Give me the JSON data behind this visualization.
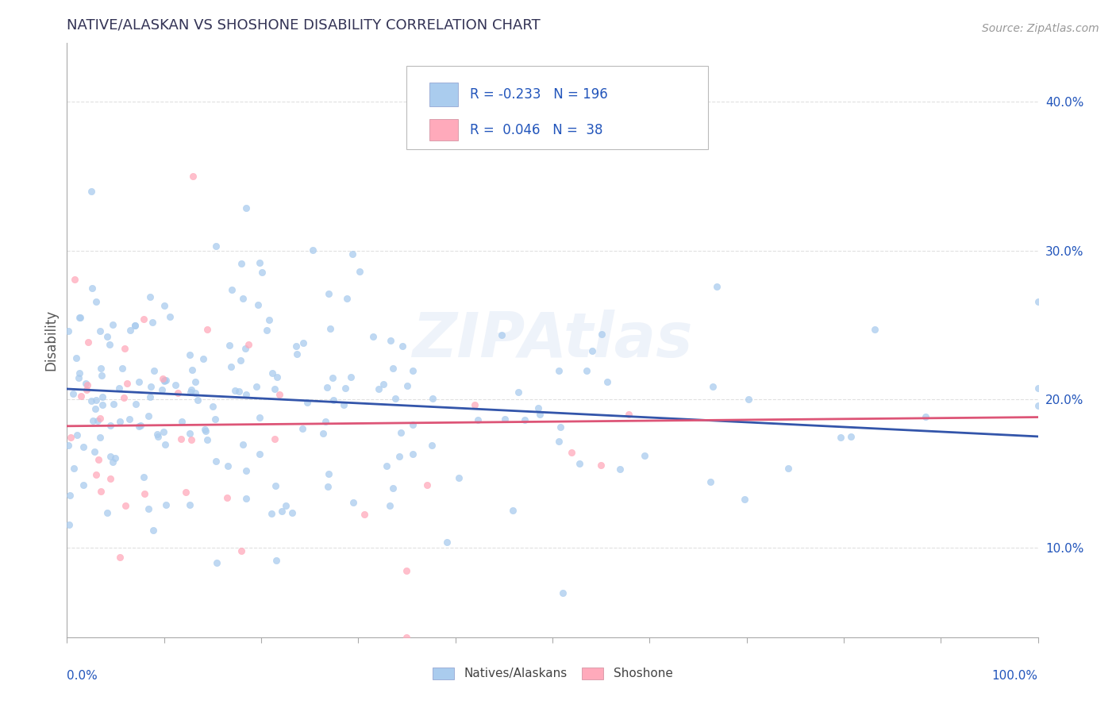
{
  "title": "NATIVE/ALASKAN VS SHOSHONE DISABILITY CORRELATION CHART",
  "source": "Source: ZipAtlas.com",
  "ylabel": "Disability",
  "r_blue": -0.233,
  "n_blue": 196,
  "r_pink": 0.046,
  "n_pink": 38,
  "blue_color": "#aaccee",
  "pink_color": "#ffaabb",
  "blue_line_color": "#3355aa",
  "pink_line_color": "#dd5577",
  "legend_blue_label": "Natives/Alaskans",
  "legend_pink_label": "Shoshone",
  "title_color": "#333355",
  "source_color": "#999999",
  "grid_color": "#dddddd",
  "watermark": "ZIPAtlas",
  "ylim": [
    0.04,
    0.44
  ],
  "xlim": [
    0.0,
    1.0
  ],
  "yticks": [
    0.1,
    0.2,
    0.3,
    0.4
  ],
  "ytick_labels": [
    "10.0%",
    "20.0%",
    "30.0%",
    "40.0%"
  ],
  "blue_line_start_y": 0.207,
  "blue_line_end_y": 0.175,
  "pink_line_start_y": 0.182,
  "pink_line_end_y": 0.188
}
